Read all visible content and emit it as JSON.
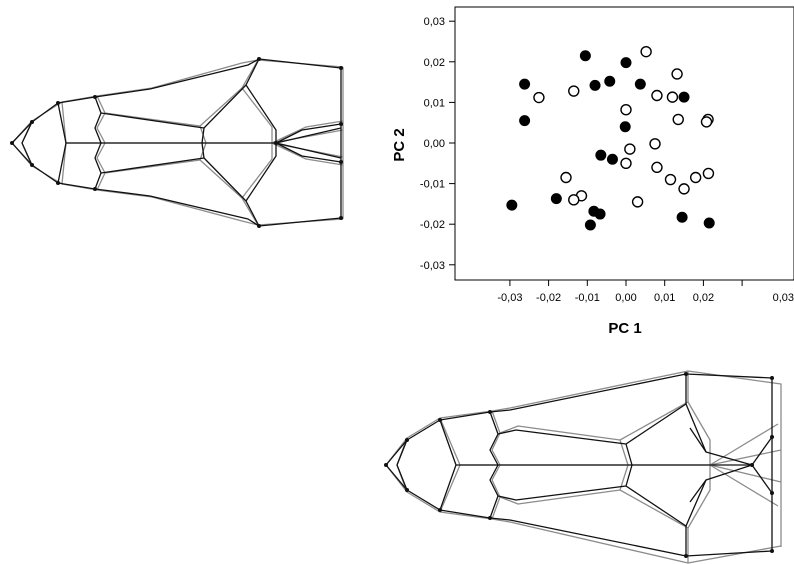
{
  "chart_data": {
    "type": "scatter",
    "title": "",
    "xlabel": "PC 1",
    "ylabel": "PC 2",
    "xlim": [
      -0.033,
      0.033
    ],
    "ylim": [
      -0.032,
      0.034
    ],
    "x_ticks": [
      "-0,03",
      "-0,02",
      "-0,01",
      "0,00",
      "0,01",
      "0,02",
      "0,03"
    ],
    "y_ticks": [
      "0,03",
      "0,02",
      "0,01",
      "0,00",
      "-0,01",
      "-0,02",
      "-0,03"
    ],
    "grid": false,
    "series": [
      {
        "marker": "filled-circle",
        "color": "#000000",
        "points": [
          [
            -0.0105,
            0.0215
          ],
          [
            0.0,
            0.0198
          ],
          [
            -0.0262,
            0.0145
          ],
          [
            -0.0042,
            0.0152
          ],
          [
            -0.008,
            0.0142
          ],
          [
            0.0037,
            0.0145
          ],
          [
            0.015,
            0.0113
          ],
          [
            -0.0262,
            0.0055
          ],
          [
            -0.0002,
            0.004
          ],
          [
            -0.0065,
            -0.003
          ],
          [
            -0.0035,
            -0.004
          ],
          [
            -0.0295,
            -0.0153
          ],
          [
            -0.018,
            -0.0137
          ],
          [
            -0.0083,
            -0.0168
          ],
          [
            -0.0067,
            -0.0175
          ],
          [
            -0.0092,
            -0.0202
          ],
          [
            0.0145,
            -0.0183
          ],
          [
            0.0215,
            -0.0197
          ]
        ]
      },
      {
        "marker": "open-circle",
        "color": "#000000",
        "points": [
          [
            0.0052,
            0.0225
          ],
          [
            0.0132,
            0.017
          ],
          [
            -0.0225,
            0.0112
          ],
          [
            -0.0135,
            0.0128
          ],
          [
            0.008,
            0.0117
          ],
          [
            0.012,
            0.0113
          ],
          [
            0.0,
            0.0082
          ],
          [
            0.0135,
            0.0058
          ],
          [
            0.0212,
            0.0058
          ],
          [
            0.0208,
            0.0052
          ],
          [
            0.0075,
            -0.0002
          ],
          [
            0.001,
            -0.0015
          ],
          [
            0.0,
            -0.005
          ],
          [
            0.008,
            -0.006
          ],
          [
            -0.0155,
            -0.0085
          ],
          [
            -0.0115,
            -0.013
          ],
          [
            -0.0135,
            -0.014
          ],
          [
            0.003,
            -0.0145
          ],
          [
            0.0115,
            -0.009
          ],
          [
            0.015,
            -0.0113
          ],
          [
            0.018,
            -0.0085
          ],
          [
            0.0213,
            -0.0075
          ]
        ]
      }
    ]
  },
  "diagrams": [
    {
      "name": "top-left-landmark-wireframe"
    },
    {
      "name": "bottom-right-landmark-wireframe"
    }
  ]
}
